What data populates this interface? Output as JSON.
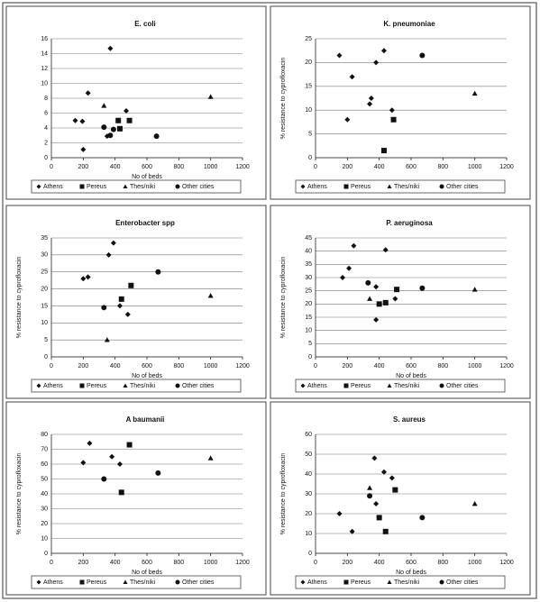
{
  "chart_data": [
    {
      "type": "scatter",
      "title": "E. coli",
      "xlabel": "No of beds",
      "xlim": [
        0,
        1200
      ],
      "xticks": [
        0,
        200,
        400,
        600,
        800,
        1000,
        1200
      ],
      "ylim": [
        0,
        16
      ],
      "yticks": [
        0,
        2,
        4,
        6,
        8,
        10,
        12,
        14,
        16
      ],
      "grid": true,
      "series": [
        {
          "name": "Athens",
          "marker": "diamond",
          "color": "#111111",
          "x": [
            150,
            195,
            230,
            370,
            350,
            200,
            470
          ],
          "values": [
            5,
            4.9,
            8.7,
            14.7,
            2.9,
            1.1,
            6.3
          ]
        },
        {
          "name": "Pereus",
          "marker": "square",
          "color": "#111111",
          "x": [
            420,
            490,
            430
          ],
          "values": [
            5,
            5,
            3.9
          ]
        },
        {
          "name": "Thes/niki",
          "marker": "triangle",
          "color": "#111111",
          "x": [
            330,
            1000
          ],
          "values": [
            7,
            8.2
          ]
        },
        {
          "name": "Other cities",
          "marker": "circle",
          "color": "#111111",
          "x": [
            330,
            370,
            390,
            660
          ],
          "values": [
            4.1,
            3,
            3.8,
            2.9
          ]
        }
      ]
    },
    {
      "type": "scatter",
      "title": "K. pneumoniae",
      "ylabel": "% resistance to cyprofloxacin",
      "xlim": [
        0,
        1200
      ],
      "xticks": [
        0,
        200,
        400,
        600,
        800,
        1000,
        1200
      ],
      "ylim": [
        0,
        25
      ],
      "yticks": [
        0,
        5,
        10,
        15,
        20,
        25
      ],
      "grid": true,
      "series": [
        {
          "name": "Athens",
          "marker": "diamond",
          "color": "#111111",
          "x": [
            150,
            230,
            340,
            380,
            430,
            480,
            350,
            200
          ],
          "values": [
            21.5,
            17,
            11.3,
            20,
            22.5,
            10,
            12.5,
            8
          ]
        },
        {
          "name": "Pereus",
          "marker": "square",
          "color": "#111111",
          "x": [
            430,
            490
          ],
          "values": [
            1.5,
            8
          ]
        },
        {
          "name": "Thes/niki",
          "marker": "triangle",
          "color": "#111111",
          "x": [
            1000
          ],
          "values": [
            13.5
          ]
        },
        {
          "name": "Other cities",
          "marker": "circle",
          "color": "#111111",
          "x": [
            670
          ],
          "values": [
            21.5
          ]
        }
      ]
    },
    {
      "type": "scatter",
      "title": "Enterobacter spp",
      "xlabel": "No of beds",
      "ylabel": "% resistance to cyprofloxacin",
      "xlim": [
        0,
        1200
      ],
      "xticks": [
        0,
        200,
        400,
        600,
        800,
        1000,
        1200
      ],
      "ylim": [
        0,
        35
      ],
      "yticks": [
        0,
        5,
        10,
        15,
        20,
        25,
        30,
        35
      ],
      "grid": true,
      "series": [
        {
          "name": "Athens",
          "marker": "diamond",
          "color": "#111111",
          "x": [
            200,
            230,
            360,
            390,
            480,
            430
          ],
          "values": [
            23,
            23.5,
            30,
            33.5,
            12.5,
            15
          ]
        },
        {
          "name": "Pereus",
          "marker": "square",
          "color": "#111111",
          "x": [
            440,
            500
          ],
          "values": [
            17,
            21
          ]
        },
        {
          "name": "Thes/niki",
          "marker": "triangle",
          "color": "#111111",
          "x": [
            350,
            1000
          ],
          "values": [
            5,
            18
          ]
        },
        {
          "name": "Other cities",
          "marker": "circle",
          "color": "#111111",
          "x": [
            330,
            670
          ],
          "values": [
            14.5,
            25
          ]
        }
      ]
    },
    {
      "type": "scatter",
      "title": "P. aeruginosa",
      "xlabel": "No of beds",
      "ylabel": "% resistance to cyprofloxacin",
      "xlim": [
        0,
        1200
      ],
      "xticks": [
        0,
        200,
        400,
        600,
        800,
        1000,
        1200
      ],
      "ylim": [
        0,
        45
      ],
      "yticks": [
        0,
        5,
        10,
        15,
        20,
        25,
        30,
        35,
        40,
        45
      ],
      "grid": true,
      "series": [
        {
          "name": "Athens",
          "marker": "diamond",
          "color": "#111111",
          "x": [
            170,
            210,
            240,
            440,
            380,
            380,
            500
          ],
          "values": [
            30,
            33.5,
            42,
            40.5,
            26.5,
            14,
            22
          ]
        },
        {
          "name": "Pereus",
          "marker": "square",
          "color": "#111111",
          "x": [
            400,
            440,
            510
          ],
          "values": [
            20,
            20.5,
            25.5
          ]
        },
        {
          "name": "Thes/niki",
          "marker": "triangle",
          "color": "#111111",
          "x": [
            340,
            1000
          ],
          "values": [
            22,
            25.5
          ]
        },
        {
          "name": "Other cities",
          "marker": "circle",
          "color": "#111111",
          "x": [
            330,
            670
          ],
          "values": [
            28,
            26
          ]
        }
      ]
    },
    {
      "type": "scatter",
      "title": "A baumanii",
      "xlabel": "No of beds",
      "ylabel": "% resistance to cyprofloxacin",
      "xlim": [
        0,
        1200
      ],
      "xticks": [
        0,
        200,
        400,
        600,
        800,
        1000,
        1200
      ],
      "ylim": [
        0,
        80
      ],
      "yticks": [
        0,
        10,
        20,
        30,
        40,
        50,
        60,
        70,
        80
      ],
      "grid": true,
      "series": [
        {
          "name": "Athens",
          "marker": "diamond",
          "color": "#111111",
          "x": [
            200,
            240,
            380,
            430
          ],
          "values": [
            61,
            74,
            65,
            60
          ]
        },
        {
          "name": "Pereus",
          "marker": "square",
          "color": "#111111",
          "x": [
            440,
            490
          ],
          "values": [
            41,
            73
          ]
        },
        {
          "name": "Thes/niki",
          "marker": "triangle",
          "color": "#111111",
          "x": [
            1000
          ],
          "values": [
            64
          ]
        },
        {
          "name": "Other cities",
          "marker": "circle",
          "color": "#111111",
          "x": [
            330,
            670
          ],
          "values": [
            50,
            54
          ]
        }
      ]
    },
    {
      "type": "scatter",
      "title": "S. aureus",
      "xlabel": "No of beds",
      "ylabel": "% resistance to cyprofloxacin",
      "xlim": [
        0,
        1200
      ],
      "xticks": [
        0,
        200,
        400,
        600,
        800,
        1000,
        1200
      ],
      "ylim": [
        0,
        60
      ],
      "yticks": [
        0,
        10,
        20,
        30,
        40,
        50,
        60
      ],
      "grid": true,
      "series": [
        {
          "name": "Athens",
          "marker": "diamond",
          "color": "#111111",
          "x": [
            150,
            230,
            370,
            430,
            380,
            480
          ],
          "values": [
            20,
            11,
            48,
            41,
            25,
            38
          ]
        },
        {
          "name": "Pereus",
          "marker": "square",
          "color": "#111111",
          "x": [
            400,
            440,
            500
          ],
          "values": [
            18,
            11,
            32
          ]
        },
        {
          "name": "Thes/niki",
          "marker": "triangle",
          "color": "#111111",
          "x": [
            340,
            1000
          ],
          "values": [
            33,
            25
          ]
        },
        {
          "name": "Other cities",
          "marker": "circle",
          "color": "#111111",
          "x": [
            340,
            670
          ],
          "values": [
            29,
            18
          ]
        }
      ]
    }
  ]
}
